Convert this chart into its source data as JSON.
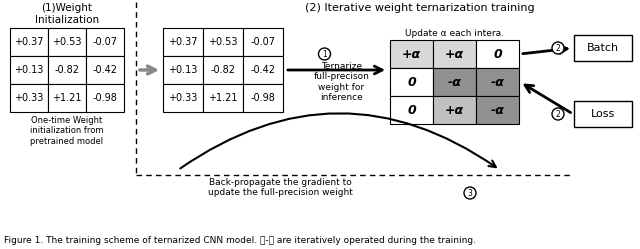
{
  "title1": "(1)Weight\nInitialization",
  "title2": "(2) Iterative weight ternarization training",
  "subtitle2": "Update α each intera.",
  "caption": "Figure 1. The training scheme of ternarized CNN model. ⓐ-ⓒ are iteratively operated during the training.",
  "matrix1": [
    [
      "+0.37",
      "+0.53",
      "-0.07"
    ],
    [
      "+0.13",
      "-0.82",
      "-0.42"
    ],
    [
      "+0.33",
      "+1.21",
      "-0.98"
    ]
  ],
  "matrix2": [
    [
      "+0.37",
      "+0.53",
      "-0.07"
    ],
    [
      "+0.13",
      "-0.82",
      "-0.42"
    ],
    [
      "+0.33",
      "+1.21",
      "-0.98"
    ]
  ],
  "matrix3": [
    [
      "+α",
      "+α",
      "0"
    ],
    [
      "0",
      "-α",
      "-α"
    ],
    [
      "0",
      "+α",
      "-α"
    ]
  ],
  "matrix3_colors": [
    [
      "#d8d8d8",
      "#d8d8d8",
      "#ffffff"
    ],
    [
      "#ffffff",
      "#909090",
      "#909090"
    ],
    [
      "#ffffff",
      "#c0c0c0",
      "#909090"
    ]
  ],
  "box_batch": "Batch",
  "box_loss": "Loss",
  "label1": "One-time Weight\ninitialization from\npretrained model",
  "step1_label": "Ternarize\nfull-precison\nweight for\ninference",
  "step3_label": "Back-propagate the gradient to\nupdate the full-precision weight",
  "bg_color": "#ffffff",
  "grid_color": "#000000",
  "text_color": "#000000"
}
